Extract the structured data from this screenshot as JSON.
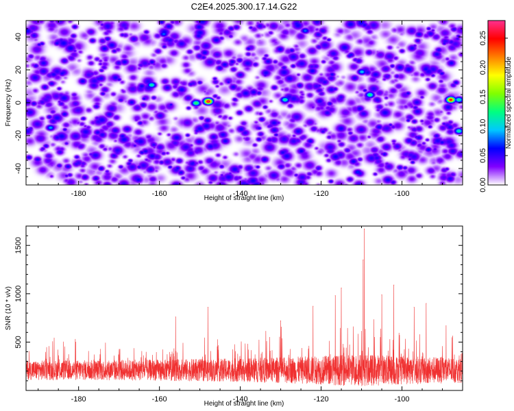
{
  "title": "C2E4.2025.300.17.14.G22",
  "chart_data": [
    {
      "type": "heatmap",
      "xlabel": "Height of straight line (km)",
      "ylabel": "Frequency (Hz)",
      "xlim": [
        -193,
        -85
      ],
      "ylim": [
        -50,
        50
      ],
      "xticks": [
        -180,
        -160,
        -140,
        -120,
        -100
      ],
      "yticks": [
        -40,
        -20,
        0,
        20,
        40
      ],
      "colorbar": {
        "label": "Normalized spectral amplitude",
        "range": [
          0,
          0.28
        ],
        "ticks": [
          "0.00",
          "0.05",
          "0.10",
          "0.15",
          "0.20",
          "0.25"
        ],
        "colormap": [
          "#ffffff",
          "#8000ff",
          "#0000ff",
          "#00c8ff",
          "#00ff80",
          "#80ff00",
          "#ffff00",
          "#ff8000",
          "#ff0000",
          "#ff3090"
        ]
      },
      "background_level": 0.04,
      "hotspots": [
        {
          "x": -148,
          "y": 1,
          "value": 0.28
        },
        {
          "x": -151,
          "y": 0,
          "value": 0.14
        },
        {
          "x": -88,
          "y": 2,
          "value": 0.26
        },
        {
          "x": -86,
          "y": 2,
          "value": 0.12
        },
        {
          "x": -86,
          "y": -17,
          "value": 0.12
        },
        {
          "x": -108,
          "y": 5,
          "value": 0.13
        },
        {
          "x": -110,
          "y": 19,
          "value": 0.1
        },
        {
          "x": -162,
          "y": 11,
          "value": 0.12
        },
        {
          "x": -129,
          "y": 2,
          "value": 0.12
        },
        {
          "x": -187,
          "y": -15,
          "value": 0.09
        },
        {
          "x": -159,
          "y": 42,
          "value": 0.08
        },
        {
          "x": -124,
          "y": 44,
          "value": 0.08
        },
        {
          "x": -111,
          "y": -42,
          "value": 0.07
        }
      ]
    },
    {
      "type": "line",
      "xlabel": "Height of straight line (km)",
      "ylabel": "SNR (10 * v/v)",
      "xlim": [
        -193,
        -85
      ],
      "ylim": [
        0,
        1700
      ],
      "xticks": [
        -180,
        -160,
        -140,
        -120,
        -100
      ],
      "yticks": [
        500,
        1000,
        1500
      ],
      "series_color": "#f03030",
      "baseline": 210,
      "noise_envelope": [
        {
          "x": -193,
          "amplitude": 230
        },
        {
          "x": -160,
          "amplitude": 250
        },
        {
          "x": -140,
          "amplitude": 280
        },
        {
          "x": -125,
          "amplitude": 320
        },
        {
          "x": -110,
          "amplitude": 380
        },
        {
          "x": -100,
          "amplitude": 340
        },
        {
          "x": -85,
          "amplitude": 300
        }
      ],
      "peaks": [
        {
          "x": -109.3,
          "y": 1670
        },
        {
          "x": -109.6,
          "y": 1350
        },
        {
          "x": -115.0,
          "y": 1060
        },
        {
          "x": -116.5,
          "y": 980
        },
        {
          "x": -122.0,
          "y": 870
        },
        {
          "x": -148.0,
          "y": 860
        },
        {
          "x": -156.0,
          "y": 760
        },
        {
          "x": -102.0,
          "y": 1090
        },
        {
          "x": -105.0,
          "y": 990
        },
        {
          "x": -94.0,
          "y": 900
        },
        {
          "x": -130.0,
          "y": 720
        },
        {
          "x": -97.0,
          "y": 860
        }
      ]
    }
  ]
}
